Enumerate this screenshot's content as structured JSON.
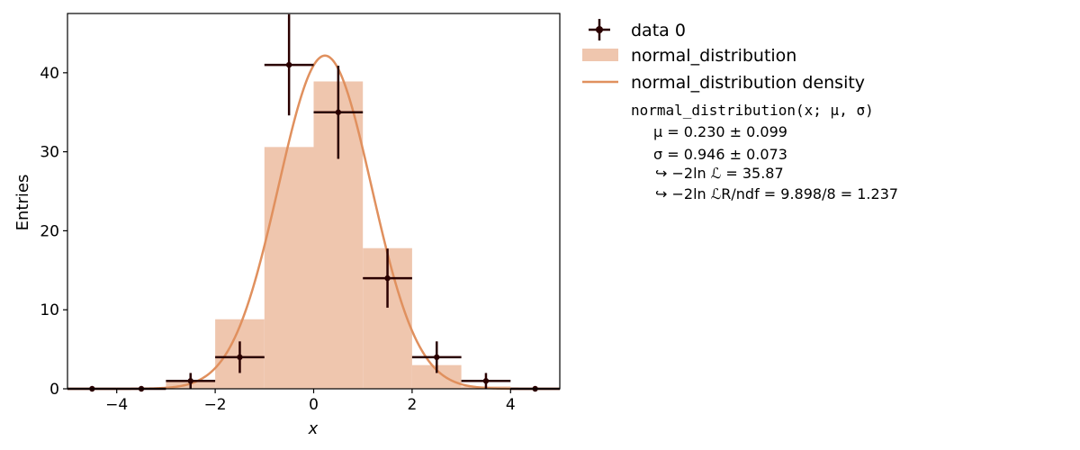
{
  "chart_data": {
    "type": "bar",
    "xlabel": "x",
    "ylabel": "Entries",
    "xlim": [
      -5,
      5
    ],
    "ylim": [
      0,
      47.5
    ],
    "xticks": [
      -4,
      -2,
      0,
      2,
      4
    ],
    "xtick_labels": [
      "−4",
      "−2",
      "0",
      "2",
      "4"
    ],
    "yticks": [
      0,
      10,
      20,
      30,
      40
    ],
    "ytick_labels": [
      "0",
      "10",
      "20",
      "30",
      "40"
    ],
    "grid": false,
    "legend_position": "outside-right",
    "colors": {
      "data": "#2a0000",
      "hist": "#efc6ae",
      "density": "#e0905e"
    },
    "histogram": {
      "name": "normal_distribution",
      "bin_edges": [
        -5,
        -4,
        -3,
        -2,
        -1,
        0,
        1,
        2,
        3,
        4,
        5
      ],
      "values": [
        0.0,
        0.1,
        0.9,
        8.8,
        30.6,
        38.9,
        17.8,
        3.0,
        0.3,
        0.0
      ]
    },
    "data_series": {
      "name": "data 0",
      "x": [
        -4.5,
        -3.5,
        -2.5,
        -1.5,
        -0.5,
        0.5,
        1.5,
        2.5,
        3.5,
        4.5
      ],
      "y": [
        0,
        0,
        1,
        4,
        41,
        35,
        14,
        4,
        1,
        0
      ],
      "xerr": 0.5,
      "yerr": [
        0,
        0,
        1,
        2,
        6.4,
        5.9,
        3.74,
        2,
        1,
        0
      ]
    },
    "density": {
      "name": "normal_distribution density",
      "mu": 0.23,
      "sigma": 0.946,
      "scale": 100
    },
    "fit_box": {
      "title": "normal_distribution(x; μ, σ)",
      "lines": [
        "μ = 0.230 ± 0.099",
        "σ = 0.946 ± 0.073",
        "↪ −2ln ℒ = 35.87",
        "↪ −2ln ℒR/ndf = 9.898/8 = 1.237"
      ]
    }
  }
}
